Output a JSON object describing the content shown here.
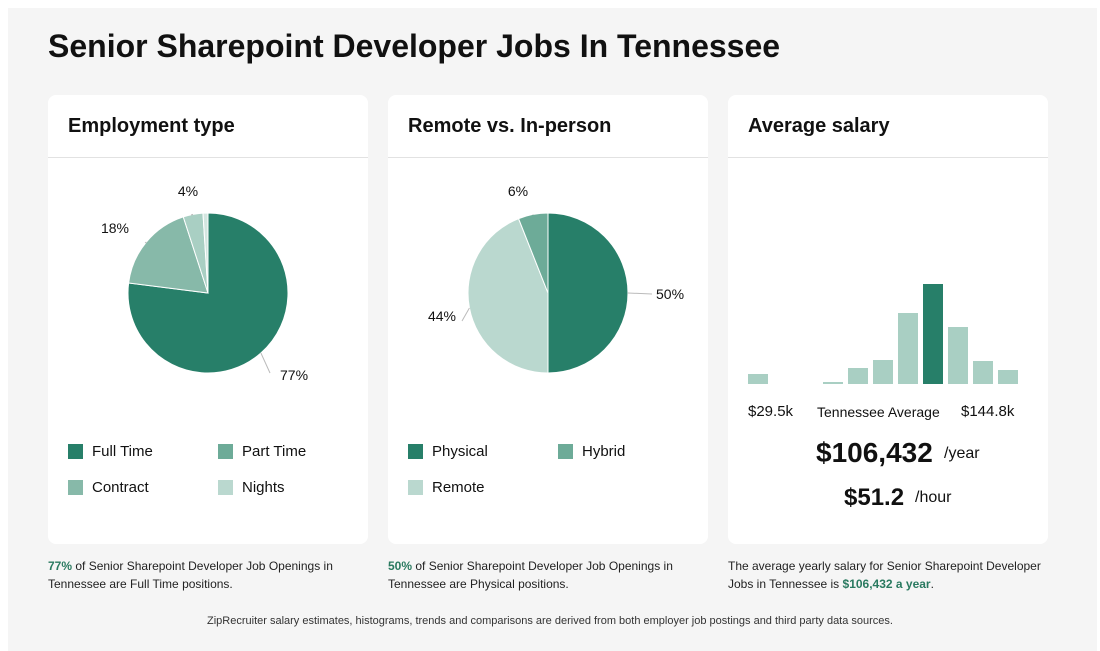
{
  "page": {
    "title": "Senior Sharepoint Developer Jobs In Tennessee",
    "footer": "ZipRecruiter salary estimates, histograms, trends and comparisons are derived from both employer job postings and third party data sources."
  },
  "colors": {
    "dark_green": "#277f69",
    "mid_green": "#6dab98",
    "light_green": "#87b9a9",
    "pale_green": "#bad8cf",
    "hist_light": "#a9cfc3",
    "highlight": "#2a7a60"
  },
  "employment": {
    "title": "Employment type",
    "legend": [
      {
        "label": "Full Time",
        "color": "#277f69"
      },
      {
        "label": "Part Time",
        "color": "#6dab98"
      },
      {
        "label": "Contract",
        "color": "#87b9a9"
      },
      {
        "label": "Nights",
        "color": "#bad8cf"
      }
    ],
    "caption_pct": "77%",
    "caption_text": " of Senior Sharepoint Developer Job Openings in Tennessee are Full Time positions."
  },
  "remote": {
    "title": "Remote vs. In-person",
    "legend": [
      {
        "label": "Physical",
        "color": "#277f69"
      },
      {
        "label": "Hybrid",
        "color": "#6dab98"
      },
      {
        "label": "Remote",
        "color": "#bad8cf"
      }
    ],
    "caption_pct": "50%",
    "caption_text": " of Senior Sharepoint Developer Job Openings in Tennessee are Physical positions."
  },
  "salary": {
    "title": "Average salary",
    "min_label": "$29.5k",
    "mid_label": "Tennessee Average",
    "max_label": "$144.8k",
    "yearly": "$106,432",
    "yearly_unit": "/year",
    "hourly": "$51.2",
    "hourly_unit": "/hour",
    "caption_text": "The average yearly salary for Senior Sharepoint Developer Jobs in Tennessee is ",
    "caption_value": "$106,432 a year",
    "caption_end": "."
  },
  "chart_data": [
    {
      "type": "pie",
      "title": "Employment type",
      "slices": [
        {
          "name": "Full Time",
          "value": 77,
          "label": "77%",
          "color": "#277f69"
        },
        {
          "name": "Part Time",
          "value": 0,
          "label": "",
          "color": "#6dab98"
        },
        {
          "name": "Contract",
          "value": 18,
          "label": "18%",
          "color": "#87b9a9"
        },
        {
          "name": "Nights",
          "value": 4,
          "label": "4%",
          "color": "#a9cfc3"
        },
        {
          "name": "",
          "value": 1,
          "label": "",
          "color": "#d3e6e0"
        }
      ]
    },
    {
      "type": "pie",
      "title": "Remote vs. In-person",
      "slices": [
        {
          "name": "Physical",
          "value": 50,
          "label": "50%",
          "color": "#277f69"
        },
        {
          "name": "Remote",
          "value": 44,
          "label": "44%",
          "color": "#bad8cf"
        },
        {
          "name": "Hybrid",
          "value": 6,
          "label": "6%",
          "color": "#6dab98"
        }
      ]
    },
    {
      "type": "bar",
      "title": "Average salary",
      "xlabel": "",
      "ylabel": "",
      "x_range": [
        "$29.5k",
        "$144.8k"
      ],
      "values": [
        10,
        0,
        0,
        2,
        16,
        24,
        71,
        100,
        57,
        23,
        14
      ],
      "highlight_index": 7,
      "y_axis_shown": false
    }
  ]
}
